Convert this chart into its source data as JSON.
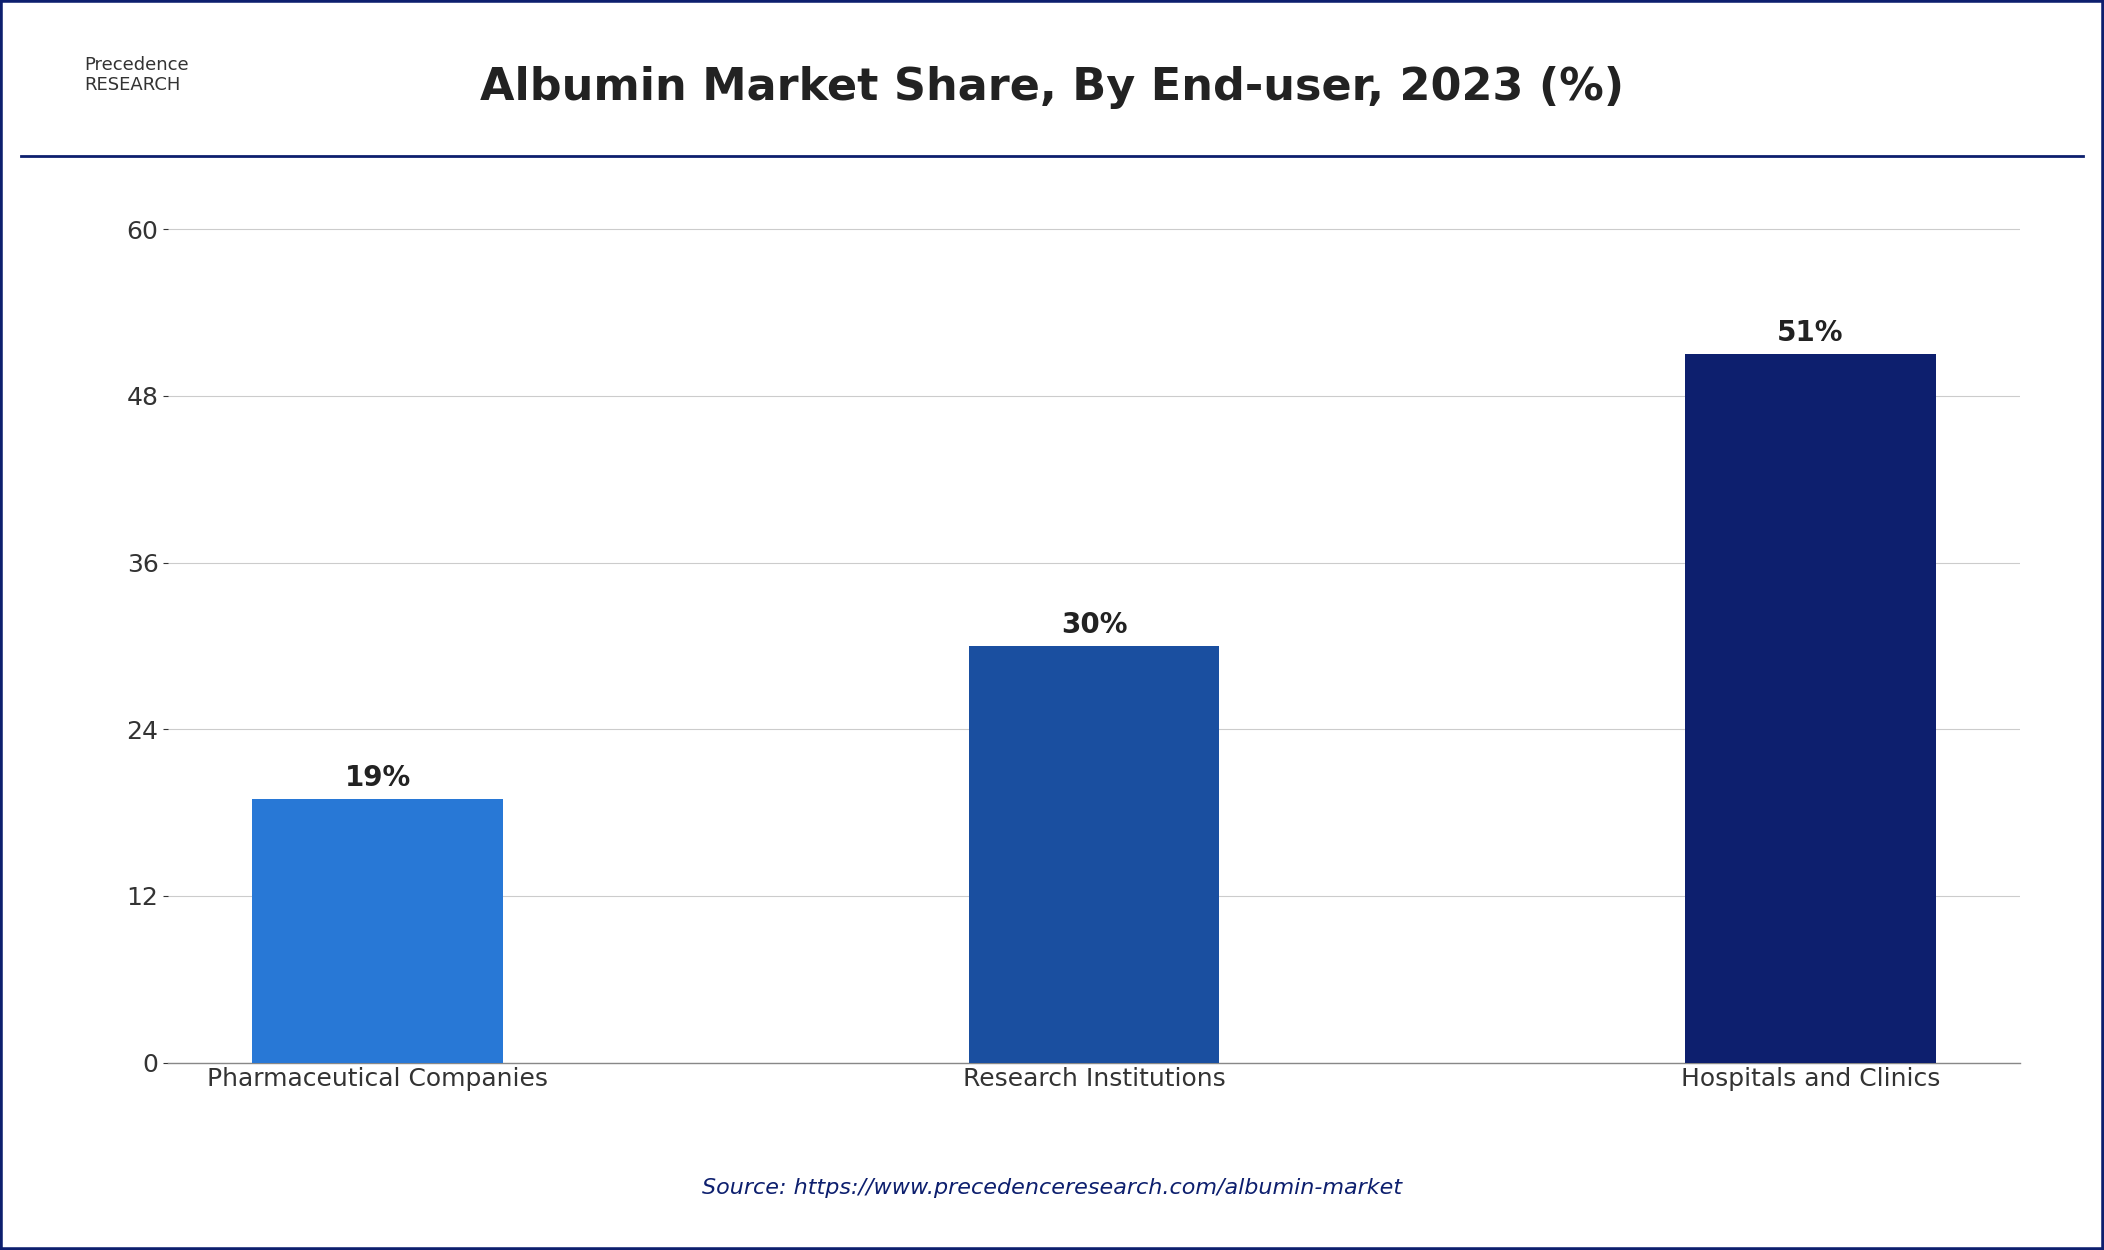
{
  "title": "Albumin Market Share, By End-user, 2023 (%)",
  "categories": [
    "Pharmaceutical Companies",
    "Research Institutions",
    "Hospitals and Clinics"
  ],
  "values": [
    19,
    30,
    51
  ],
  "labels": [
    "19%",
    "30%",
    "51%"
  ],
  "bar_colors": [
    "#2878d6",
    "#1a4fa0",
    "#0d1f6e"
  ],
  "ylim": [
    0,
    63
  ],
  "yticks": [
    0,
    12,
    24,
    36,
    48,
    60
  ],
  "grid_color": "#cccccc",
  "background_color": "#ffffff",
  "plot_bg_color": "#ffffff",
  "title_fontsize": 32,
  "title_color": "#222222",
  "tick_label_fontsize": 18,
  "bar_label_fontsize": 20,
  "bar_label_color": "#222222",
  "source_text": "Source: https://www.precedenceresearch.com/albumin-market",
  "source_color": "#0d1f6e",
  "source_fontsize": 16,
  "outer_border_color": "#0d1f6e",
  "separator_line_color": "#0d1f6e",
  "bar_width": 0.35
}
